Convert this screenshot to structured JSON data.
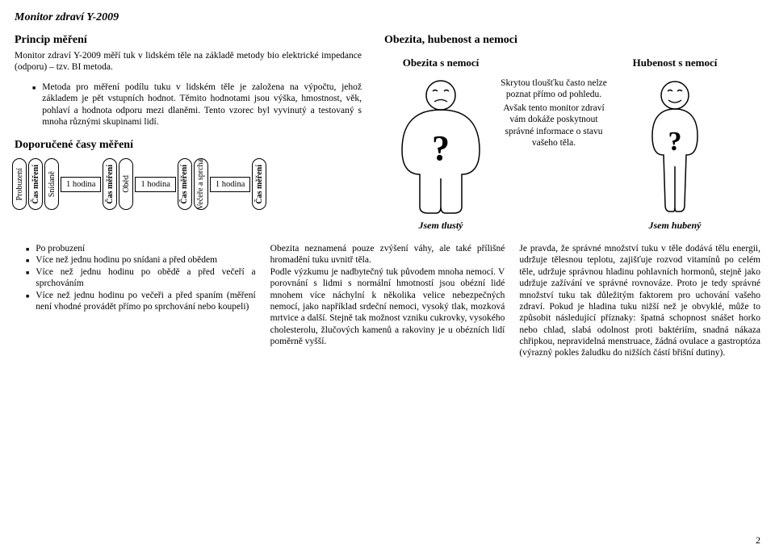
{
  "title": "Monitor zdraví Y-2009",
  "principle": {
    "heading": "Princip měření",
    "intro": "Monitor zdraví Y-2009 měří tuk v lidském těle na základě metody bio elektrické impedance (odporu) – tzv. BI metoda.",
    "bullet": "Metoda pro měření podílu tuku v lidském těle je založena na výpočtu, jehož základem je pět vstupních hodnot. Těmito hodnotami jsou výška, hmostnost, věk, pohlaví a hodnota odporu mezi dlaněmi. Tento vzorec byl vyvinutý a testovaný s mnoha různými skupinami lidí."
  },
  "recommended": {
    "heading": "Doporučené časy měření",
    "pills": {
      "wake": "Probuzení",
      "measure": "Čas měření",
      "breakfast": "Snídaně",
      "lunch": "Oběd",
      "dinner": "Večeře a sprcha"
    },
    "gap": "1 hodina"
  },
  "obesity": {
    "heading": "Obezita, hubenost a nemoci",
    "left_label": "Obezita s nemocí",
    "right_label": "Hubenost s nemocí",
    "left_caption": "Jsem tlustý",
    "right_caption": "Jsem hubený",
    "center": "Skrytou tloušťku často nelze poznat přímo od pohledu.\nAvšak tento monitor zdraví vám dokáže poskytnout správné informace o stavu vašeho těla."
  },
  "after_list": {
    "items": [
      "Po probuzení",
      "Více než jednu hodinu po snídani a před obědem",
      "Více než jednu hodinu po obědě a před večeří a sprchováním",
      "Více než jednu hodinu po večeři a před spaním (měření není vhodné provádět přímo po sprchování nebo koupeli)"
    ]
  },
  "bottom": {
    "mid": "Obezita neznamená pouze zvýšení váhy, ale také přílišné hromadění tuku uvnitř těla.\nPodle výzkumu je nadbytečný tuk původem mnoha nemocí. V porovnání s lidmi s normální hmotností jsou obézní lidé mnohem více náchylní k několika velice nebezpečných nemocí, jako například srdeční nemoci, vysoký tlak, mozková mrtvice a další. Stejně tak možnost vzniku cukrovky, vysokého cholesterolu, žlučových kamenů a rakoviny je u obézních lidí poměrně vyšší.",
    "right": "Je pravda, že správné množství tuku v těle dodává tělu energii, udržuje tělesnou teplotu, zajišťuje rozvod vitamínů po celém těle, udržuje správnou hladinu pohlavních hormonů, stejně jako udržuje zažívání ve správné rovnováze. Proto je tedy správné množství tuku tak důležitým faktorem pro uchování vašeho zdraví. Pokud je hladina tuku nižší než je obvyklé, může to způsobit následující příznaky: špatná schopnost snášet horko nebo chlad, slabá odolnost proti baktériím, snadná nákaza chřipkou, nepravidelná menstruace, žádná ovulace a gastroptóza (výrazný pokles žaludku do nižších částí břišní dutiny)."
  },
  "page": "2"
}
